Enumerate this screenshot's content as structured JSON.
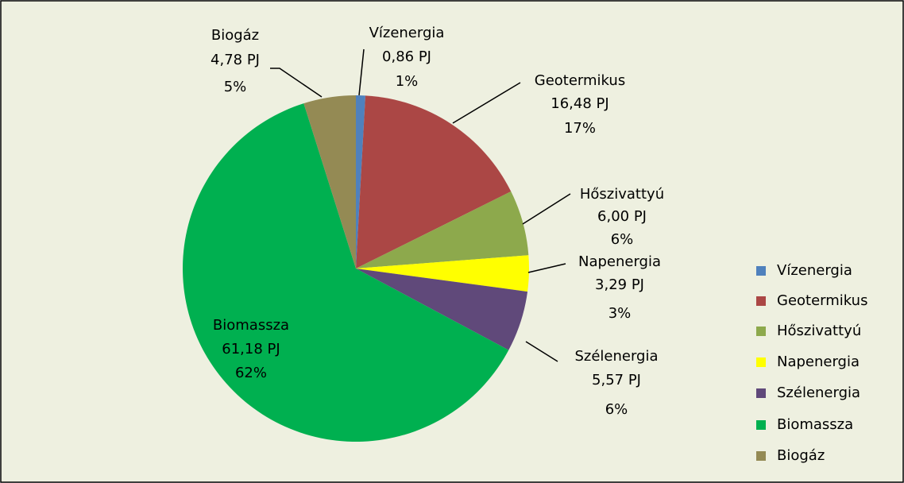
{
  "chart_data": {
    "type": "pie",
    "categories": [
      "Vízenergia",
      "Geotermikus",
      "Hőszivattyú",
      "Napenergia",
      "Szélenergia",
      "Biomassza",
      "Biogáz"
    ],
    "values": [
      0.86,
      16.48,
      6.0,
      3.29,
      5.57,
      61.18,
      4.78
    ],
    "value_labels": [
      "0,86 PJ",
      "16,48 PJ",
      "6,00 PJ",
      "3,29 PJ",
      "5,57 PJ",
      "61,18 PJ",
      "4,78 PJ"
    ],
    "percent_labels": [
      "1%",
      "17%",
      "6%",
      "3%",
      "6%",
      "62%",
      "5%"
    ],
    "colors": [
      "#4f81bd",
      "#ab4745",
      "#8da94c",
      "#ffff00",
      "#60497a",
      "#00b050",
      "#948a54"
    ],
    "legend": "right"
  }
}
